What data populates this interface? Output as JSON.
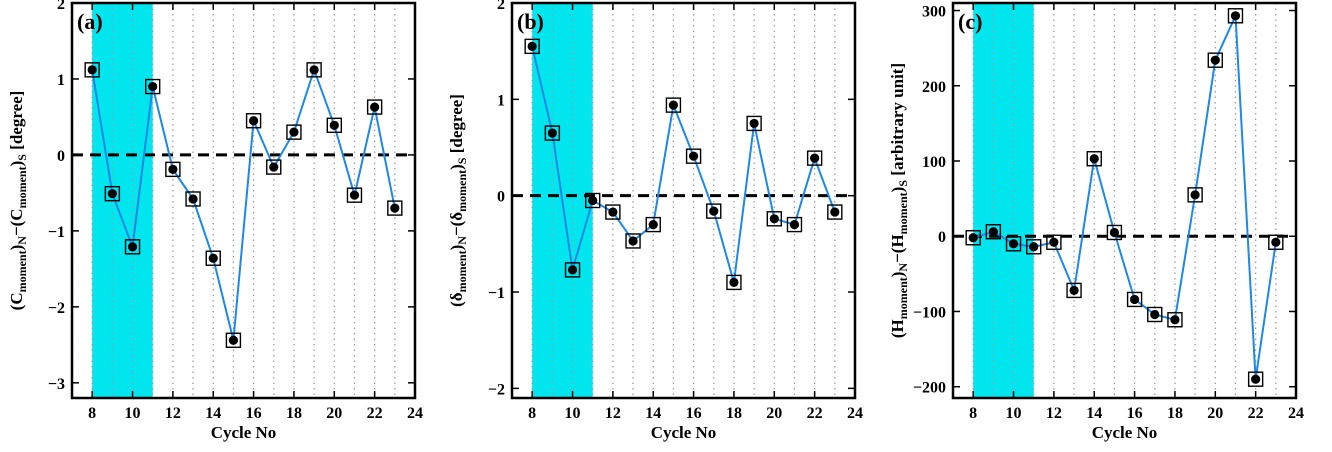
{
  "chart_data": [
    {
      "type": "line",
      "panel_label": "(a)",
      "xlabel": "Cycle No",
      "ylabel": {
        "parts": [
          [
            "(C",
            ""
          ],
          [
            "moment",
            "sub"
          ],
          [
            ")",
            ""
          ],
          [
            "N",
            "sub"
          ],
          [
            "−(C",
            ""
          ],
          [
            "moment",
            "sub"
          ],
          [
            ")",
            ""
          ],
          [
            "S",
            "sub"
          ],
          [
            "  [degree]",
            ""
          ]
        ]
      },
      "xlim": [
        7,
        24
      ],
      "ylim": [
        -3.2,
        2
      ],
      "xticks": [
        8,
        10,
        12,
        14,
        16,
        18,
        20,
        22,
        24
      ],
      "yticks": [
        -3,
        -2,
        -1,
        0,
        1,
        2
      ],
      "highlight_x": [
        8,
        11
      ],
      "reference_y": 0,
      "grid": "vertical-dotted",
      "x": [
        8,
        9,
        10,
        11,
        12,
        13,
        14,
        15,
        16,
        17,
        18,
        19,
        20,
        21,
        22,
        23
      ],
      "y": [
        1.12,
        -0.51,
        -1.21,
        0.9,
        -0.19,
        -0.58,
        -1.36,
        -2.44,
        0.45,
        -0.16,
        0.3,
        1.12,
        0.39,
        -0.53,
        0.63,
        -0.7
      ]
    },
    {
      "type": "line",
      "panel_label": "(b)",
      "xlabel": "Cycle No",
      "ylabel": {
        "parts": [
          [
            "(δ",
            ""
          ],
          [
            "moment",
            "sub"
          ],
          [
            ")",
            ""
          ],
          [
            "N",
            "sub"
          ],
          [
            "−(δ",
            ""
          ],
          [
            "moment",
            "sub"
          ],
          [
            ")",
            ""
          ],
          [
            "S",
            "sub"
          ],
          [
            "  [degree]",
            ""
          ]
        ]
      },
      "xlim": [
        7,
        24
      ],
      "ylim": [
        -2.1,
        2
      ],
      "xticks": [
        8,
        10,
        12,
        14,
        16,
        18,
        20,
        22,
        24
      ],
      "yticks": [
        -2,
        -1,
        0,
        1,
        2
      ],
      "highlight_x": [
        8,
        11
      ],
      "reference_y": 0,
      "grid": "vertical-dotted",
      "x": [
        8,
        9,
        10,
        11,
        12,
        13,
        14,
        15,
        16,
        17,
        18,
        19,
        20,
        21,
        22,
        23
      ],
      "y": [
        1.55,
        0.65,
        -0.77,
        -0.05,
        -0.17,
        -0.47,
        -0.3,
        0.94,
        0.41,
        -0.16,
        -0.9,
        0.75,
        -0.24,
        -0.3,
        0.39,
        -0.17
      ]
    },
    {
      "type": "line",
      "panel_label": "(c)",
      "xlabel": "Cycle No",
      "ylabel": {
        "parts": [
          [
            "(H",
            ""
          ],
          [
            "moment",
            "sub"
          ],
          [
            ")",
            ""
          ],
          [
            "N",
            "sub"
          ],
          [
            "−(H",
            ""
          ],
          [
            "moment",
            "sub"
          ],
          [
            ")",
            ""
          ],
          [
            "S",
            "sub"
          ],
          [
            "  [arbitrary unit]",
            ""
          ]
        ]
      },
      "xlim": [
        7,
        24
      ],
      "ylim": [
        -215,
        310
      ],
      "xticks": [
        8,
        10,
        12,
        14,
        16,
        18,
        20,
        22,
        24
      ],
      "yticks": [
        -200,
        -100,
        0,
        100,
        200,
        300
      ],
      "highlight_x": [
        8,
        11
      ],
      "reference_y": 0,
      "grid": "vertical-dotted",
      "x": [
        8,
        9,
        10,
        11,
        12,
        13,
        14,
        15,
        16,
        17,
        18,
        19,
        20,
        21,
        22,
        23
      ],
      "y": [
        -2,
        6,
        -10,
        -14,
        -8,
        -72,
        103,
        5,
        -84,
        -104,
        -111,
        55,
        234,
        293,
        -190,
        -8
      ]
    }
  ],
  "colors": {
    "line": "#1e88e5",
    "highlight": "#00e5ee",
    "marker_fill": "#000000",
    "reference_line": "#000000",
    "grid": "#9e9e9e"
  }
}
